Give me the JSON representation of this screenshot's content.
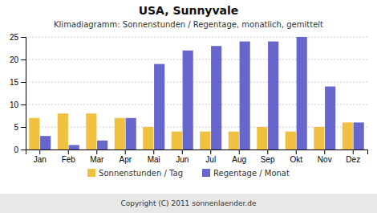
{
  "chart_data": {
    "type": "bar",
    "title": "USA,  Sunnyvale",
    "subtitle": "Klimadiagramm: Sonnenstunden / Regentage, monatlich, gemittelt",
    "annotations": [
      "Copyright (C) 2011 sonnenlaender.de"
    ],
    "categories": [
      "Jan",
      "Feb",
      "Mar",
      "Apr",
      "Mai",
      "Jun",
      "Jul",
      "Aug",
      "Sep",
      "Okt",
      "Nov",
      "Dez"
    ],
    "series": [
      {
        "name": "Sonnenstunden / Tag",
        "color": "#F0C040",
        "values": [
          7,
          8,
          8,
          7,
          5,
          4,
          4,
          4,
          5,
          4,
          5,
          6
        ]
      },
      {
        "name": "Regentage / Monat",
        "color": "#6666CC",
        "values": [
          3,
          1,
          2,
          7,
          19,
          22,
          23,
          24,
          24,
          25,
          14,
          6
        ]
      }
    ],
    "ylim": [
      0,
      25
    ],
    "yticks": [
      0,
      5,
      10,
      15,
      20,
      25
    ],
    "grid": true,
    "legend": "bottom"
  }
}
